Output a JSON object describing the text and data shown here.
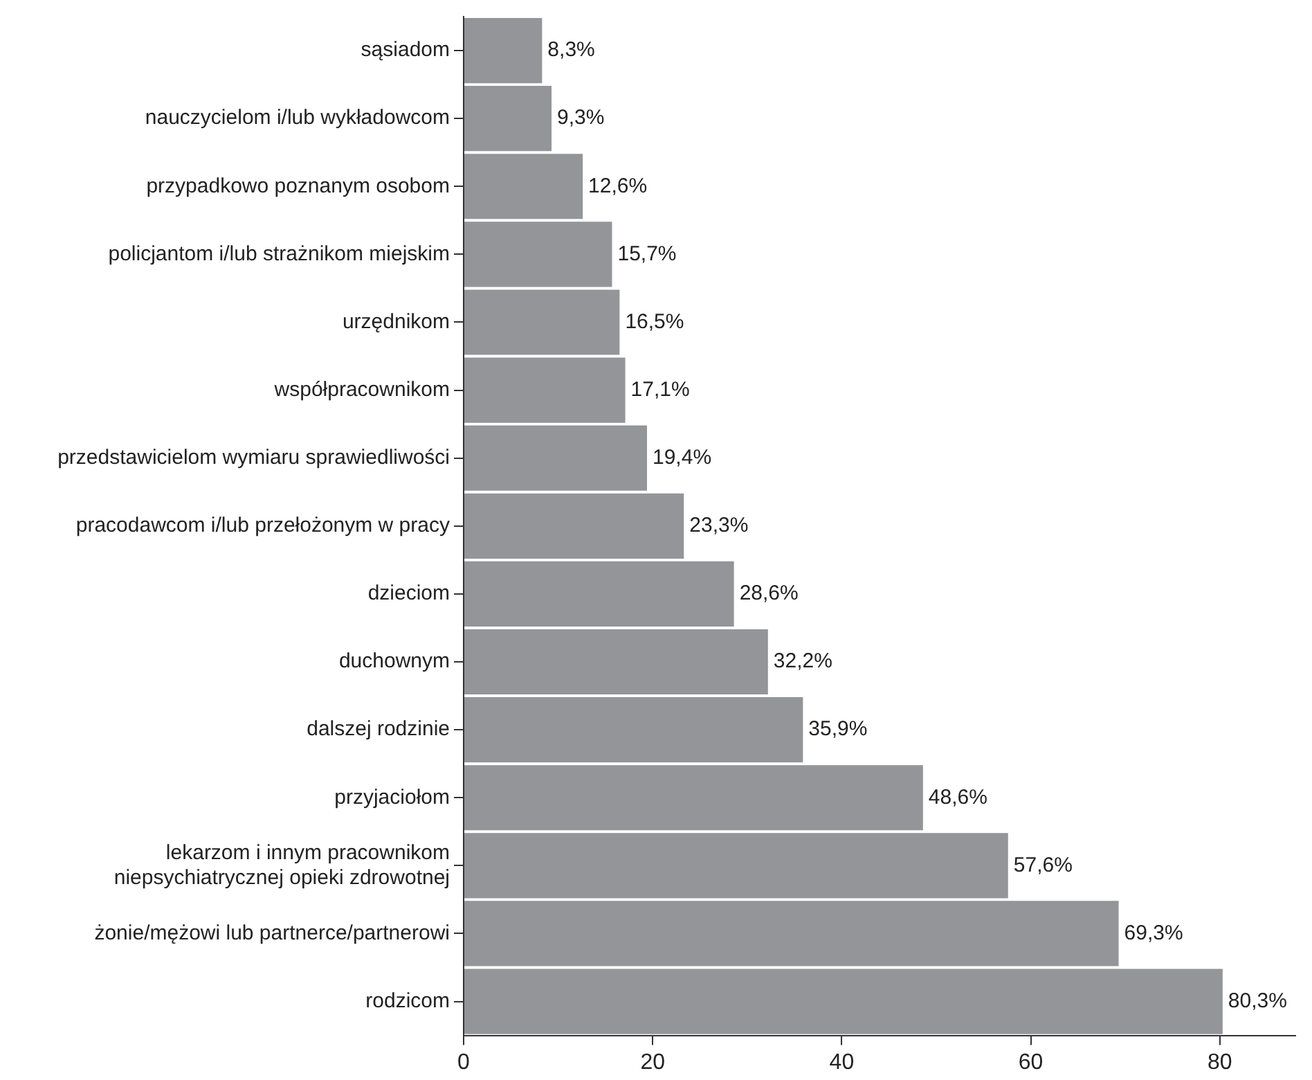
{
  "chart_data": {
    "type": "bar",
    "orientation": "horizontal",
    "categories": [
      "sąsiadom",
      "nauczycielom i/lub wykładowcom",
      "przypadkowo poznanym osobom",
      "policjantom i/lub strażnikom miejskim",
      "urzędnikom",
      "współpracownikom",
      "przedstawicielom wymiaru sprawiedliwości",
      "pracodawcom i/lub przełożonym w pracy",
      "dzieciom",
      "duchownym",
      "dalszej rodzinie",
      "przyjaciołom",
      "lekarzom i innym pracownikom niepsychiatrycznej opieki zdrowotnej",
      "żonie/mężowi lub partnerce/partnerowi",
      "rodzicom"
    ],
    "values": [
      8.3,
      9.3,
      12.6,
      15.7,
      16.5,
      17.1,
      19.4,
      23.3,
      28.6,
      32.2,
      35.9,
      48.6,
      57.6,
      69.3,
      80.3
    ],
    "value_labels": [
      "8,3%",
      "9,3%",
      "12,6%",
      "15,7%",
      "16,5%",
      "17,1%",
      "19,4%",
      "23,3%",
      "28,6%",
      "32,2%",
      "35,9%",
      "48,6%",
      "57,6%",
      "69,3%",
      "80,3%"
    ],
    "color": "#939598",
    "xlim": [
      0,
      88
    ],
    "xticks": [
      0,
      20,
      40,
      60,
      80
    ],
    "grid": false,
    "legend": false
  }
}
